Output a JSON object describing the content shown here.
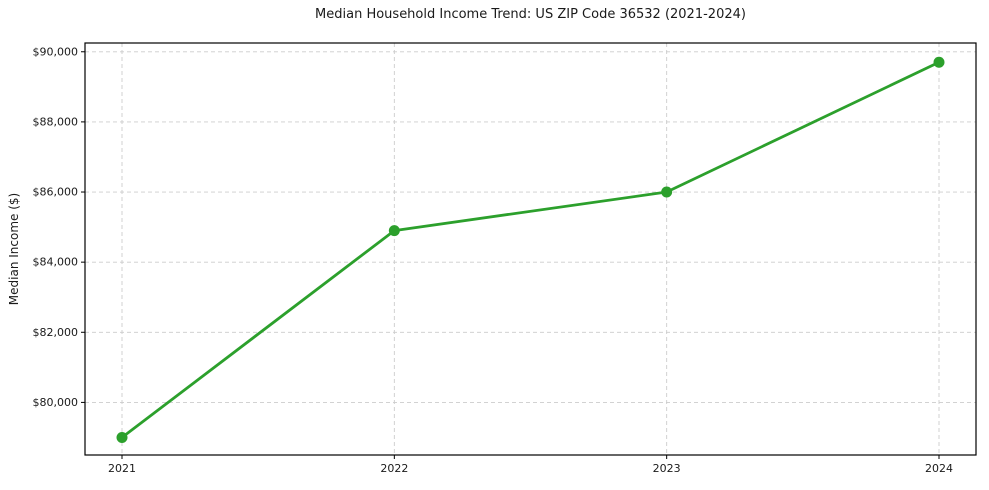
{
  "chart_data": {
    "type": "line",
    "title": "Median Household Income Trend: US ZIP Code 36532 (2021-2024)",
    "xlabel": "",
    "ylabel": "Median Income ($)",
    "x": [
      "2021",
      "2022",
      "2023",
      "2024"
    ],
    "values": [
      79000,
      84900,
      86000,
      89700
    ],
    "y_tick_values": [
      80000,
      82000,
      84000,
      86000,
      88000,
      90000
    ],
    "y_tick_labels": [
      "$80,000",
      "$82,000",
      "$84,000",
      "$86,000",
      "$88,000",
      "$90,000"
    ],
    "ylim": [
      78500,
      90250
    ],
    "grid": true,
    "grid_style": "dashed",
    "legend": "none",
    "line_color": "#2ca02c",
    "marker": "circle",
    "background_color": "#ffffff",
    "axis_color": "#000000",
    "grid_color": "#cccccc",
    "text_color": "#1a1a1a"
  }
}
